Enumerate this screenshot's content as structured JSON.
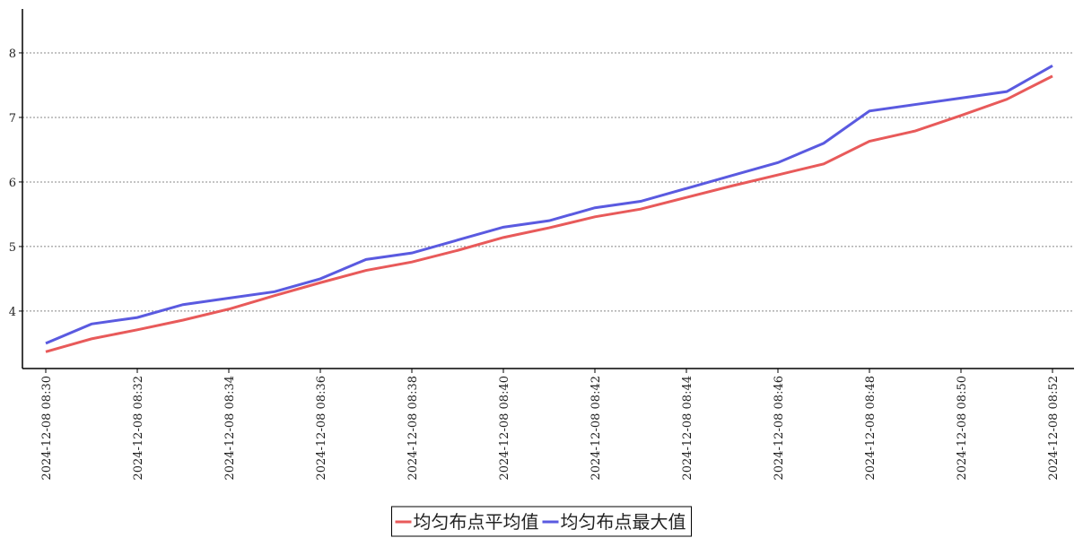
{
  "chart_data": {
    "type": "line",
    "categories": [
      "2024-12-08 08:30",
      null,
      "2024-12-08 08:32",
      null,
      "2024-12-08 08:34",
      null,
      "2024-12-08 08:36",
      null,
      "2024-12-08 08:38",
      null,
      "2024-12-08 08:40",
      null,
      "2024-12-08 08:42",
      null,
      "2024-12-08 08:44",
      null,
      "2024-12-08 08:46",
      null,
      "2024-12-08 08:48",
      null,
      "2024-12-08 08:50",
      null,
      "2024-12-08 08:52"
    ],
    "series": [
      {
        "name": "均匀布点平均值",
        "color": "#e85a5a",
        "values": [
          3.37,
          3.57,
          3.71,
          3.86,
          4.03,
          4.24,
          4.44,
          4.63,
          4.76,
          4.94,
          5.14,
          5.29,
          5.46,
          5.58,
          5.76,
          5.94,
          6.11,
          6.28,
          6.63,
          6.79,
          7.03,
          7.28,
          7.64
        ]
      },
      {
        "name": "均匀布点最大值",
        "color": "#5a5ae0",
        "values": [
          3.5,
          3.8,
          3.9,
          4.1,
          4.2,
          4.3,
          4.5,
          4.8,
          4.9,
          5.1,
          5.3,
          5.4,
          5.6,
          5.7,
          5.9,
          6.1,
          6.3,
          6.6,
          7.1,
          7.2,
          7.3,
          7.4,
          7.8
        ]
      }
    ],
    "ylim": [
      3.11,
      8.68
    ],
    "yticks": [
      4,
      5,
      6,
      7,
      8
    ],
    "grid": true,
    "legend": "bottom"
  }
}
